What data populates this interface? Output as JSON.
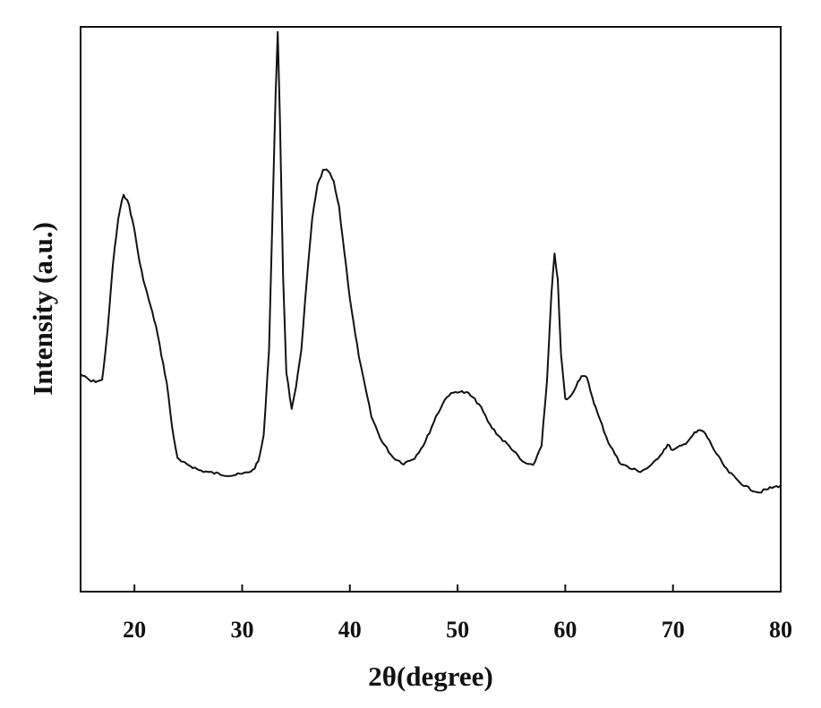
{
  "chart_data": {
    "type": "line",
    "title": "",
    "xlabel": "2θ(degree)",
    "ylabel": "Intensity (a.u.)",
    "xlim": [
      15,
      80
    ],
    "ylim": [
      0,
      100
    ],
    "xticks": [
      20,
      30,
      40,
      50,
      60,
      70,
      80
    ],
    "y_ticks_shown": false,
    "grid": false,
    "legend": "none",
    "colors": {
      "line": "#111111",
      "frame": "#111111",
      "background": "#ffffff"
    },
    "series": [
      {
        "x": [
          15,
          16,
          17,
          17.5,
          18,
          18.5,
          19,
          19.5,
          20,
          20.5,
          21,
          21.5,
          22,
          22.5,
          23,
          23.5,
          24,
          24.5,
          25,
          26,
          27,
          28,
          29,
          30,
          31,
          31.5,
          32,
          32.5,
          32.8,
          33.1,
          33.3,
          33.5,
          33.8,
          34.1,
          34.6,
          35,
          35.5,
          36,
          36.5,
          37,
          37.5,
          38,
          38.5,
          39,
          39.5,
          40,
          40.5,
          41,
          42,
          43,
          44,
          45,
          46,
          47,
          48,
          49,
          50,
          51,
          52,
          53,
          54,
          55,
          56,
          57,
          57.8,
          58.3,
          58.7,
          59,
          59.3,
          59.6,
          60,
          60.5,
          61,
          61.5,
          62,
          62.5,
          63,
          64,
          65,
          66,
          67,
          68,
          69,
          69.5,
          70,
          71,
          72,
          72.5,
          73,
          74,
          75,
          76,
          77,
          78,
          79,
          80
        ],
        "y": [
          38.5,
          37.2,
          37.4,
          46,
          58,
          66,
          70.5,
          68.5,
          64,
          58,
          54,
          50.5,
          47,
          42,
          37,
          29,
          23.5,
          22.8,
          22.5,
          21.5,
          21.1,
          20.8,
          20.6,
          20.8,
          21.5,
          23,
          27.5,
          43,
          65,
          88,
          99,
          84,
          56,
          39,
          32.2,
          36,
          43,
          55,
          66,
          72,
          74.5,
          74.5,
          72.5,
          68,
          60,
          52,
          45.5,
          40,
          31,
          26.5,
          23.8,
          22.7,
          23.7,
          26.5,
          31,
          34.6,
          35.5,
          35.1,
          33.2,
          29.5,
          27.2,
          25.4,
          23,
          22.2,
          26,
          37,
          52,
          60,
          55,
          42,
          34,
          34.5,
          36.5,
          38.3,
          37.8,
          34.5,
          31.5,
          26.5,
          23,
          21.8,
          21.3,
          22.3,
          24.7,
          26,
          25,
          26,
          28,
          28.6,
          28,
          24.5,
          21.5,
          19.7,
          18.3,
          17.6,
          18.3,
          18.8
        ]
      }
    ]
  }
}
